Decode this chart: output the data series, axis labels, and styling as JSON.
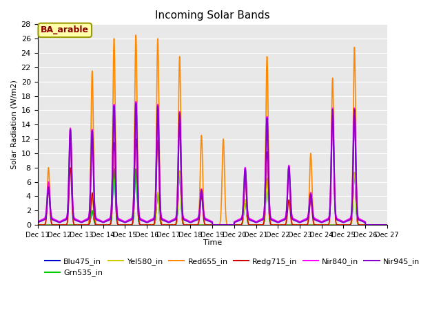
{
  "title": "Incoming Solar Bands",
  "xlabel": "Time",
  "ylabel": "Solar Radiation (W/m2)",
  "annotation": "BA_arable",
  "ylim": [
    0,
    28
  ],
  "background_color": "#e8e8e8",
  "series_order": [
    "Blu475_in",
    "Grn535_in",
    "Yel580_in",
    "Red655_in",
    "Redg715_in",
    "Nir840_in",
    "Nir945_in"
  ],
  "series": {
    "Blu475_in": {
      "color": "#0000cc",
      "lw": 1.0
    },
    "Grn535_in": {
      "color": "#00cc00",
      "lw": 1.0
    },
    "Yel580_in": {
      "color": "#cccc00",
      "lw": 1.0
    },
    "Red655_in": {
      "color": "#ff8800",
      "lw": 1.2
    },
    "Redg715_in": {
      "color": "#cc0000",
      "lw": 1.0
    },
    "Nir840_in": {
      "color": "#ff00ff",
      "lw": 1.5
    },
    "Nir945_in": {
      "color": "#8800cc",
      "lw": 1.5
    }
  },
  "peaks": [
    {
      "day": 11,
      "blu": 0.0,
      "grn": 0.0,
      "yel": 0.0,
      "red": 8.0,
      "redg": 4.8,
      "nir840": 5.0,
      "nir945": 4.5,
      "nir840_base": 1.0,
      "nir945_base": 0.8
    },
    {
      "day": 12,
      "blu": 0.0,
      "grn": 0.0,
      "yel": 0.0,
      "red": 12.8,
      "redg": 8.0,
      "nir840": 12.5,
      "nir945": 12.5,
      "nir840_base": 1.0,
      "nir945_base": 0.8
    },
    {
      "day": 13,
      "blu": 2.0,
      "grn": 2.0,
      "yel": 3.8,
      "red": 21.5,
      "redg": 4.5,
      "nir840": 12.3,
      "nir945": 12.3,
      "nir840_base": 1.0,
      "nir945_base": 0.8
    },
    {
      "day": 14,
      "blu": 7.8,
      "grn": 7.8,
      "yel": 16.0,
      "red": 26.0,
      "redg": 11.5,
      "nir840": 15.8,
      "nir945": 15.8,
      "nir840_base": 1.0,
      "nir945_base": 0.8
    },
    {
      "day": 15,
      "blu": 7.8,
      "grn": 7.8,
      "yel": 16.0,
      "red": 26.5,
      "redg": 12.0,
      "nir840": 16.2,
      "nir945": 16.2,
      "nir840_base": 1.0,
      "nir945_base": 0.8
    },
    {
      "day": 16,
      "blu": 4.5,
      "grn": 4.5,
      "yel": 4.5,
      "red": 26.0,
      "redg": 11.8,
      "nir840": 15.8,
      "nir945": 15.8,
      "nir840_base": 1.0,
      "nir945_base": 0.8
    },
    {
      "day": 17,
      "blu": 7.5,
      "grn": 7.5,
      "yel": 7.5,
      "red": 23.5,
      "redg": 15.0,
      "nir840": 14.8,
      "nir945": 14.8,
      "nir840_base": 1.0,
      "nir945_base": 0.8
    },
    {
      "day": 18,
      "blu": 0.0,
      "grn": 0.0,
      "yel": 0.0,
      "red": 12.5,
      "redg": 4.0,
      "nir840": 4.0,
      "nir945": 4.0,
      "nir840_base": 1.0,
      "nir945_base": 0.8
    },
    {
      "day": 19,
      "blu": 0.0,
      "grn": 0.0,
      "yel": 0.0,
      "red": 12.0,
      "redg": 0.0,
      "nir840": 0.0,
      "nir945": 0.0,
      "nir840_base": 1.0,
      "nir945_base": 0.8
    },
    {
      "day": 20,
      "blu": 3.5,
      "grn": 3.5,
      "yel": 3.5,
      "red": 7.0,
      "redg": 6.8,
      "nir840": 7.0,
      "nir945": 7.0,
      "nir840_base": 1.0,
      "nir945_base": 0.8
    },
    {
      "day": 21,
      "blu": 6.5,
      "grn": 6.5,
      "yel": 6.5,
      "red": 23.5,
      "redg": 10.2,
      "nir840": 14.1,
      "nir945": 14.1,
      "nir840_base": 1.0,
      "nir945_base": 0.8
    },
    {
      "day": 22,
      "blu": 0.0,
      "grn": 0.0,
      "yel": 0.0,
      "red": 8.1,
      "redg": 3.5,
      "nir840": 7.3,
      "nir945": 7.3,
      "nir840_base": 1.0,
      "nir945_base": 0.8
    },
    {
      "day": 23,
      "blu": 0.0,
      "grn": 0.0,
      "yel": 0.0,
      "red": 10.0,
      "redg": 3.5,
      "nir840": 3.5,
      "nir945": 3.5,
      "nir840_base": 1.0,
      "nir945_base": 0.8
    },
    {
      "day": 24,
      "blu": 0.0,
      "grn": 0.0,
      "yel": 0.0,
      "red": 20.5,
      "redg": 15.3,
      "nir840": 15.3,
      "nir945": 15.3,
      "nir840_base": 1.0,
      "nir945_base": 0.8
    },
    {
      "day": 25,
      "blu": 7.3,
      "grn": 7.3,
      "yel": 7.3,
      "red": 24.8,
      "redg": 15.5,
      "nir840": 15.3,
      "nir945": 15.3,
      "nir840_base": 1.0,
      "nir945_base": 0.8
    },
    {
      "day": 26,
      "blu": 0.0,
      "grn": 0.0,
      "yel": 0.0,
      "red": 0.0,
      "redg": 0.0,
      "nir840": 0.0,
      "nir945": 0.0,
      "nir840_base": 0.0,
      "nir945_base": 0.0
    }
  ],
  "legend_entries": [
    {
      "label": "Blu475_in",
      "color": "#0000cc"
    },
    {
      "label": "Grn535_in",
      "color": "#00cc00"
    },
    {
      "label": "Yel580_in",
      "color": "#cccc00"
    },
    {
      "label": "Red655_in",
      "color": "#ff8800"
    },
    {
      "label": "Redg715_in",
      "color": "#cc0000"
    },
    {
      "label": "Nir840_in",
      "color": "#ff00ff"
    },
    {
      "label": "Nir945_in",
      "color": "#8800cc"
    }
  ]
}
